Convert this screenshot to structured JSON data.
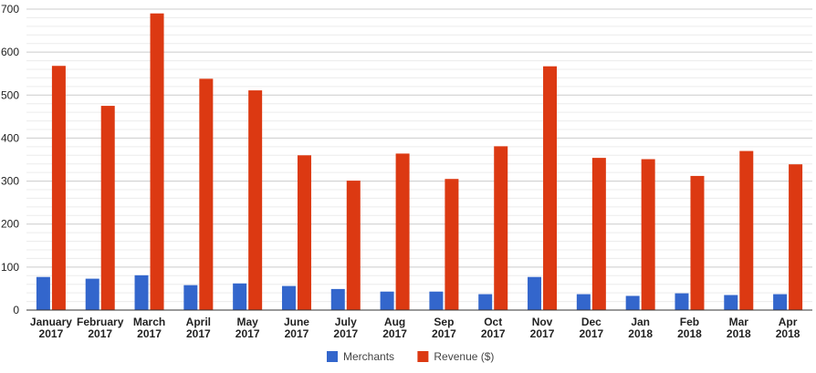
{
  "chart_data": {
    "type": "bar",
    "categories": [
      [
        "January",
        "2017"
      ],
      [
        "February",
        "2017"
      ],
      [
        "March",
        "2017"
      ],
      [
        "April",
        "2017"
      ],
      [
        "May",
        "2017"
      ],
      [
        "June",
        "2017"
      ],
      [
        "July",
        "2017"
      ],
      [
        "Aug",
        "2017"
      ],
      [
        "Sep",
        "2017"
      ],
      [
        "Oct",
        "2017"
      ],
      [
        "Nov",
        "2017"
      ],
      [
        "Dec",
        "2017"
      ],
      [
        "Jan",
        "2018"
      ],
      [
        "Feb",
        "2018"
      ],
      [
        "Mar",
        "2018"
      ],
      [
        "Apr",
        "2018"
      ]
    ],
    "series": [
      {
        "name": "Merchants",
        "color": "#3366cc",
        "values": [
          77,
          73,
          81,
          58,
          62,
          56,
          49,
          43,
          43,
          37,
          77,
          37,
          33,
          39,
          35,
          37
        ]
      },
      {
        "name": "Revenue ($)",
        "color": "#dc3912",
        "values": [
          568,
          475,
          690,
          538,
          511,
          360,
          301,
          364,
          305,
          381,
          567,
          354,
          351,
          312,
          370,
          339
        ]
      }
    ],
    "ylim": [
      0,
      700
    ],
    "yticks": [
      0,
      100,
      200,
      300,
      400,
      500,
      600,
      700
    ],
    "minor_gridlines_per_major": 5,
    "grid": true,
    "legend_position": "bottom",
    "title": "",
    "xlabel": "",
    "ylabel": ""
  }
}
